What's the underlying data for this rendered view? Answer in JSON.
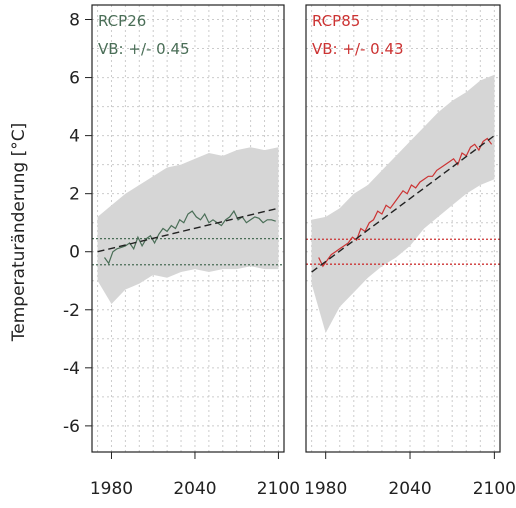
{
  "chart_data": {
    "type": "line",
    "ylabel": "Temperaturänderung [°C]",
    "ylim": [
      -6.9,
      8.5
    ],
    "xlim": [
      1966,
      2104
    ],
    "yticks": [
      -6,
      -4,
      -2,
      0,
      2,
      4,
      6,
      8
    ],
    "xticks": [
      1980,
      2040,
      2100
    ],
    "grid": true,
    "colors": {
      "range": "#d6d6d6",
      "frame": "#222222",
      "grid": "#cccccc",
      "trend": "#222222"
    },
    "panels": [
      {
        "label": "RCP26",
        "vb_label": "VB: +/- 0.45",
        "vb": 0.45,
        "color": "#4a6e57",
        "trend": {
          "x": [
            1970,
            2100
          ],
          "y": [
            0.0,
            1.5
          ]
        },
        "range": {
          "x": [
            1970,
            1980,
            1990,
            2000,
            2010,
            2020,
            2030,
            2040,
            2050,
            2060,
            2070,
            2080,
            2090,
            2100
          ],
          "lo": [
            -1.0,
            -1.8,
            -1.3,
            -1.1,
            -0.8,
            -0.9,
            -0.7,
            -0.6,
            -0.7,
            -0.6,
            -0.6,
            -0.5,
            -0.6,
            -0.6
          ],
          "hi": [
            1.2,
            1.6,
            2.0,
            2.3,
            2.6,
            2.9,
            3.0,
            3.2,
            3.4,
            3.3,
            3.5,
            3.6,
            3.5,
            3.6
          ]
        },
        "series": {
          "x": [
            1975,
            1978,
            1981,
            1984,
            1987,
            1990,
            1993,
            1996,
            1999,
            2002,
            2005,
            2008,
            2011,
            2014,
            2017,
            2020,
            2023,
            2026,
            2029,
            2032,
            2035,
            2038,
            2041,
            2044,
            2047,
            2050,
            2053,
            2056,
            2059,
            2062,
            2065,
            2068,
            2071,
            2074,
            2077,
            2080,
            2083,
            2086,
            2089,
            2092,
            2095,
            2098
          ],
          "y": [
            -0.2,
            -0.4,
            0.0,
            0.1,
            0.15,
            0.2,
            0.3,
            0.1,
            0.5,
            0.2,
            0.45,
            0.55,
            0.3,
            0.6,
            0.8,
            0.7,
            0.9,
            0.8,
            1.1,
            1.0,
            1.3,
            1.4,
            1.2,
            1.1,
            1.3,
            1.0,
            1.1,
            1.0,
            0.9,
            1.1,
            1.2,
            1.4,
            1.1,
            1.2,
            1.0,
            1.1,
            1.2,
            1.15,
            1.0,
            1.1,
            1.1,
            1.05
          ]
        }
      },
      {
        "label": "RCP85",
        "vb_label": "VB: +/- 0.43",
        "vb": 0.43,
        "color": "#cc3333",
        "trend": {
          "x": [
            1970,
            2100
          ],
          "y": [
            -0.7,
            4.0
          ]
        },
        "range": {
          "x": [
            1970,
            1980,
            1990,
            2000,
            2010,
            2020,
            2030,
            2040,
            2050,
            2060,
            2070,
            2080,
            2090,
            2100
          ],
          "lo": [
            -1.1,
            -2.8,
            -1.9,
            -1.4,
            -0.9,
            -0.5,
            -0.2,
            0.2,
            0.8,
            1.2,
            1.6,
            2.0,
            2.3,
            2.5
          ],
          "hi": [
            1.1,
            1.2,
            1.5,
            2.0,
            2.3,
            2.8,
            3.3,
            3.8,
            4.3,
            4.8,
            5.2,
            5.5,
            5.9,
            6.1
          ]
        },
        "series": {
          "x": [
            1975,
            1978,
            1981,
            1984,
            1987,
            1990,
            1993,
            1996,
            1999,
            2002,
            2005,
            2008,
            2011,
            2014,
            2017,
            2020,
            2023,
            2026,
            2029,
            2032,
            2035,
            2038,
            2041,
            2044,
            2047,
            2050,
            2053,
            2056,
            2059,
            2062,
            2065,
            2068,
            2071,
            2074,
            2077,
            2080,
            2083,
            2086,
            2089,
            2092,
            2095,
            2098
          ],
          "y": [
            -0.2,
            -0.5,
            -0.3,
            -0.1,
            0.0,
            0.1,
            0.2,
            0.3,
            0.5,
            0.4,
            0.8,
            0.7,
            1.0,
            1.1,
            1.4,
            1.3,
            1.6,
            1.5,
            1.7,
            1.9,
            2.1,
            2.0,
            2.3,
            2.2,
            2.4,
            2.5,
            2.6,
            2.6,
            2.8,
            2.9,
            3.0,
            3.1,
            3.2,
            3.0,
            3.4,
            3.3,
            3.6,
            3.7,
            3.5,
            3.8,
            3.9,
            3.7
          ]
        }
      }
    ]
  }
}
